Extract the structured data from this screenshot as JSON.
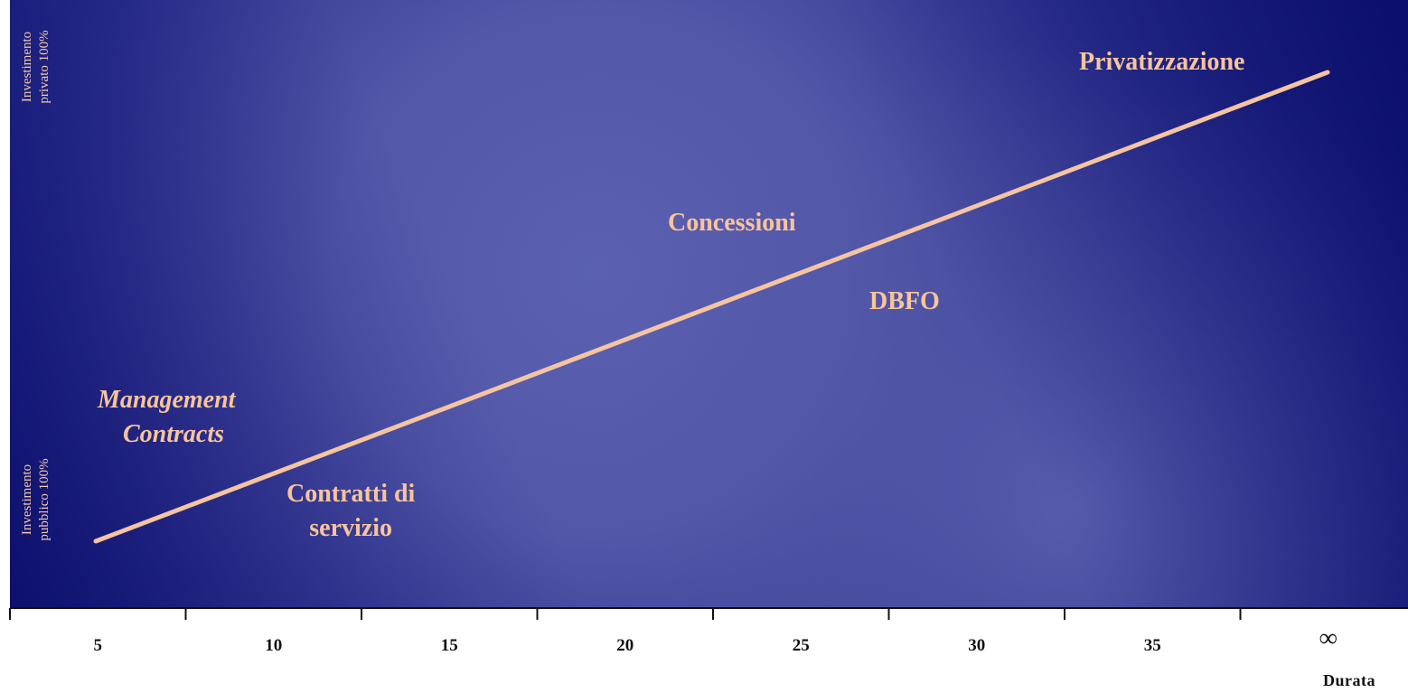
{
  "colors": {
    "background_dark": "#0c0f6e",
    "background_light": "#5a5fae",
    "trend_line": "#f5c4a0",
    "label_text": "#f9c49a",
    "axis_text": "#111111"
  },
  "y_axis": {
    "top_label_line1": "Investimento",
    "top_label_line2": "privato 100%",
    "bottom_label_line1": "Investimento",
    "bottom_label_line2": "pubblico 100%"
  },
  "x_axis": {
    "title": "Durata",
    "ticks": [
      "5",
      "10",
      "15",
      "20",
      "25",
      "30",
      "35",
      "∞"
    ]
  },
  "categories": {
    "privatizzazione": "Privatizzazione",
    "concessioni": "Concessioni",
    "dbfo": "DBFO",
    "management_line1": "Management",
    "management_line2": "Contracts",
    "contratti_line1": "Contratti di",
    "contratti_line2": "servizio"
  }
}
